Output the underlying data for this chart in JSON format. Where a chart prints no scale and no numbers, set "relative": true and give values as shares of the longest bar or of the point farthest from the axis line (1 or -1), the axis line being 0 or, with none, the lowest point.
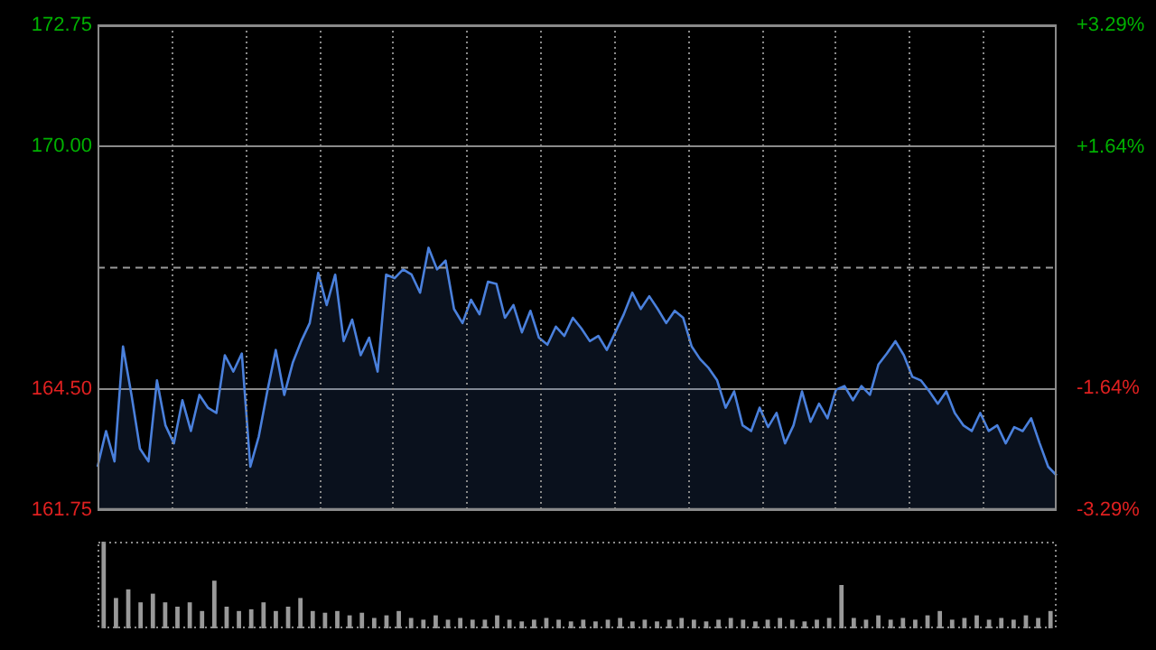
{
  "chart_data": [
    {
      "type": "area",
      "grid": true,
      "categories": [
        null,
        null,
        null,
        null,
        null,
        null,
        null,
        null,
        null,
        null,
        null,
        null,
        null,
        null,
        null,
        null,
        null,
        null,
        null,
        null,
        null,
        null,
        null,
        null,
        null,
        null,
        null,
        null,
        null,
        null,
        null,
        null,
        null,
        null,
        null,
        null,
        null,
        null,
        null,
        null,
        null,
        null,
        null,
        null,
        null,
        null,
        null,
        null,
        null,
        null,
        null,
        null,
        null,
        null,
        null,
        null,
        null,
        null,
        null,
        null,
        null,
        null,
        null,
        null,
        null,
        null,
        null,
        null,
        null,
        null,
        null,
        null,
        null,
        null,
        null,
        null,
        null,
        null,
        null,
        null,
        null,
        null,
        null,
        null,
        null,
        null,
        null,
        null,
        null,
        null,
        null,
        null,
        null,
        null,
        null,
        null,
        null,
        null,
        null,
        null,
        null,
        null,
        null,
        null,
        null,
        null,
        null,
        null,
        null,
        null,
        null,
        null,
        null,
        null
      ],
      "ylim": [
        161.75,
        172.75
      ],
      "yticks": [
        {
          "value": 161.75,
          "label": "161.75"
        },
        {
          "value": 164.5,
          "label": "164.50"
        },
        {
          "value": 170,
          "label": "170.00"
        },
        {
          "value": 172.75,
          "label": "172.75"
        }
      ],
      "y2lim": [
        -3.29,
        3.29
      ],
      "y2ticks": [
        {
          "value": -3.29,
          "label": "-3.29%"
        },
        {
          "value": -1.64,
          "label": "-1.64%"
        },
        {
          "value": 1.64,
          "label": "+1.64%"
        },
        {
          "value": 3.29,
          "label": "+3.29%"
        }
      ],
      "ref_lines": [
        {
          "axis": "y",
          "value": 167.25,
          "color": "#999999",
          "line_style": "dashed"
        }
      ],
      "series": [
        {
          "color": "#4a80dc",
          "values": [
            162.73,
            163.54,
            162.85,
            165.46,
            164.36,
            163.14,
            162.85,
            164.69,
            163.67,
            163.26,
            164.24,
            163.54,
            164.36,
            164.07,
            163.95,
            165.26,
            164.89,
            165.3,
            162.73,
            163.42,
            164.44,
            165.38,
            164.36,
            165.09,
            165.58,
            165.99,
            167.13,
            166.4,
            167.09,
            165.58,
            166.07,
            165.26,
            165.66,
            164.89,
            167.09,
            167.01,
            167.21,
            167.09,
            166.68,
            167.7,
            167.21,
            167.41,
            166.31,
            165.99,
            166.52,
            166.19,
            166.93,
            166.88,
            166.11,
            166.4,
            165.78,
            166.27,
            165.66,
            165.5,
            165.91,
            165.7,
            166.11,
            165.87,
            165.58,
            165.7,
            165.38,
            165.78,
            166.19,
            166.68,
            166.31,
            166.6,
            166.31,
            165.99,
            166.27,
            166.11,
            165.46,
            165.17,
            164.97,
            164.69,
            164.07,
            164.44,
            163.67,
            163.54,
            164.07,
            163.63,
            163.95,
            163.26,
            163.67,
            164.44,
            163.75,
            164.16,
            163.83,
            164.48,
            164.56,
            164.24,
            164.56,
            164.36,
            165.05,
            165.3,
            165.58,
            165.26,
            164.77,
            164.69,
            164.44,
            164.16,
            164.44,
            163.95,
            163.67,
            163.54,
            163.95,
            163.54,
            163.67,
            163.26,
            163.63,
            163.54,
            163.83,
            163.26,
            162.73,
            162.53
          ]
        }
      ]
    },
    {
      "type": "bar",
      "relative": true,
      "color": "#999999",
      "categories": [
        null,
        null,
        null,
        null,
        null,
        null,
        null,
        null,
        null,
        null,
        null,
        null,
        null,
        null,
        null,
        null,
        null,
        null,
        null,
        null,
        null,
        null,
        null,
        null,
        null,
        null,
        null,
        null,
        null,
        null,
        null,
        null,
        null,
        null,
        null,
        null,
        null,
        null,
        null,
        null,
        null,
        null,
        null,
        null,
        null,
        null,
        null,
        null,
        null,
        null,
        null,
        null,
        null,
        null,
        null,
        null,
        null,
        null,
        null,
        null,
        null,
        null,
        null,
        null,
        null,
        null,
        null,
        null,
        null,
        null,
        null,
        null,
        null,
        null,
        null,
        null,
        null,
        null
      ],
      "values": [
        1,
        0.35,
        0.45,
        0.3,
        0.4,
        0.3,
        0.25,
        0.3,
        0.2,
        0.55,
        0.25,
        0.2,
        0.22,
        0.3,
        0.2,
        0.25,
        0.35,
        0.2,
        0.18,
        0.2,
        0.15,
        0.18,
        0.12,
        0.15,
        0.2,
        0.12,
        0.1,
        0.15,
        0.1,
        0.12,
        0.1,
        0.1,
        0.15,
        0.1,
        0.08,
        0.1,
        0.12,
        0.1,
        0.08,
        0.1,
        0.08,
        0.1,
        0.12,
        0.08,
        0.1,
        0.08,
        0.1,
        0.12,
        0.1,
        0.08,
        0.1,
        0.12,
        0.1,
        0.08,
        0.1,
        0.12,
        0.1,
        0.08,
        0.1,
        0.12,
        0.5,
        0.12,
        0.1,
        0.15,
        0.1,
        0.12,
        0.1,
        0.15,
        0.2,
        0.1,
        0.12,
        0.15,
        0.1,
        0.12,
        0.1,
        0.15,
        0.12,
        0.2
      ]
    }
  ]
}
